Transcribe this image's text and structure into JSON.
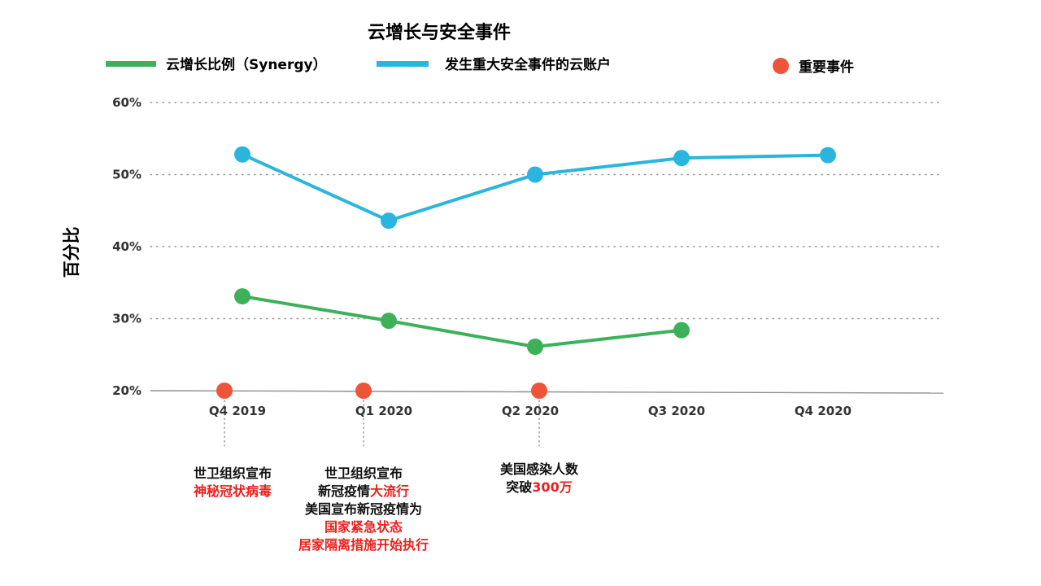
{
  "chart_data": {
    "type": "line",
    "title": "云增长与安全事件",
    "ylabel": "百分比",
    "xlabel": "",
    "ylim": [
      20,
      60
    ],
    "yticks": [
      "60%",
      "50%",
      "40%",
      "30%",
      "20%"
    ],
    "categories": [
      "Q4 2019",
      "Q1 2020",
      "Q2 2020",
      "Q3 2020",
      "Q4 2020"
    ],
    "grid": true,
    "legend": "top",
    "series": [
      {
        "name": "云增长比例（Synergy）",
        "color": "#3cb15a",
        "values": [
          33.1,
          29.7,
          26.1,
          28.4,
          null
        ]
      },
      {
        "name": "发生重大安全事件的云账户",
        "color": "#2ab5de",
        "values": [
          52.8,
          43.6,
          50.0,
          52.3,
          52.7
        ]
      }
    ],
    "events_legend": {
      "name": "重要事件",
      "color": "#ee5538"
    },
    "events": [
      {
        "x": 0.2,
        "y": 20,
        "lines": [
          [
            {
              "t": "世卫组织宣布",
              "red": false
            }
          ],
          [
            {
              "t": "神秘冠状病毒",
              "red": true
            }
          ]
        ]
      },
      {
        "x": 1.15,
        "y": 20,
        "lines": [
          [
            {
              "t": "世卫组织宣布",
              "red": false
            }
          ],
          [
            {
              "t": "新冠疫情",
              "red": false
            },
            {
              "t": "大流行",
              "red": true
            }
          ],
          [
            {
              "t": "美国宣布新冠疫情为",
              "red": false
            }
          ],
          [
            {
              "t": "国家紧急状态",
              "red": true
            }
          ],
          [
            {
              "t": "居家隔离措施开始执行",
              "red": true
            }
          ]
        ]
      },
      {
        "x": 2.35,
        "y": 20,
        "lines": [
          [
            {
              "t": "美国感染人数",
              "red": false
            }
          ],
          [
            {
              "t": "突破",
              "red": false
            },
            {
              "t": "300万",
              "red": true
            }
          ]
        ]
      }
    ]
  }
}
